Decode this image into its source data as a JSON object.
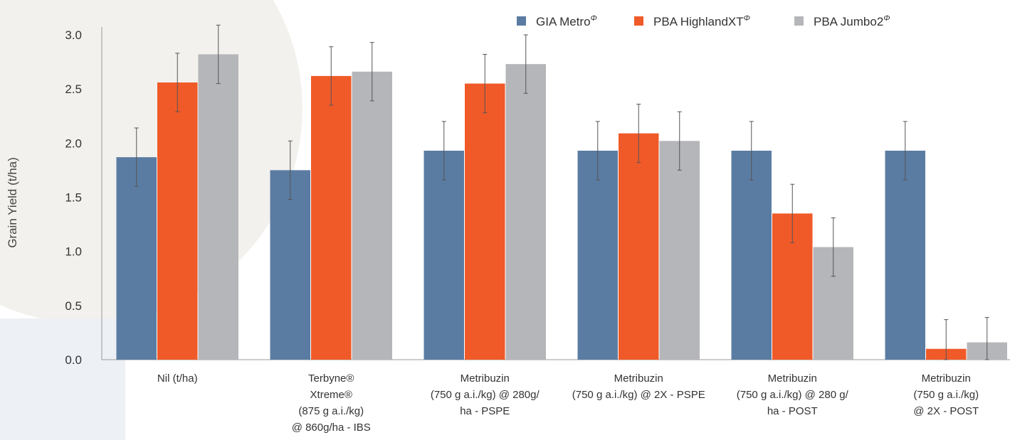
{
  "chart_data": {
    "type": "bar",
    "title": "",
    "ylabel": "Grain Yield (t/ha)",
    "xlabel": "",
    "ylim": [
      0,
      3.0
    ],
    "yticks": [
      "0.0",
      "0.5",
      "1.0",
      "1.5",
      "2.0",
      "2.5",
      "3.0"
    ],
    "grid": false,
    "legend_position": "top-right",
    "categories": [
      [
        "Nil (t/ha)"
      ],
      [
        "Terbyne®",
        "Xtreme®",
        "(875 g a.i./kg)",
        "@ 860g/ha - IBS"
      ],
      [
        "Metribuzin",
        "(750 g a.i./kg) @ 280g/",
        "ha - PSPE"
      ],
      [
        "Metribuzin",
        "(750 g a.i./kg) @ 2X - PSPE"
      ],
      [
        "Metribuzin",
        "(750 g a.i./kg) @ 280 g/",
        "ha - POST"
      ],
      [
        "Metribuzin",
        "(750 g a.i./kg)",
        "@ 2X - POST"
      ]
    ],
    "series": [
      {
        "name": "GIA Metro",
        "color": "#5b7ca2",
        "values": [
          1.87,
          1.75,
          1.93,
          1.93,
          1.93,
          1.93
        ],
        "errors": [
          0.27,
          0.27,
          0.27,
          0.27,
          0.27,
          0.27
        ]
      },
      {
        "name": "PBA HighlandXT",
        "color": "#f05a28",
        "values": [
          2.56,
          2.62,
          2.55,
          2.09,
          1.35,
          0.1
        ],
        "errors": [
          0.27,
          0.27,
          0.27,
          0.27,
          0.27,
          0.27
        ]
      },
      {
        "name": "PBA Jumbo2",
        "color": "#b5b6b9",
        "values": [
          2.82,
          2.66,
          2.73,
          2.02,
          1.04,
          0.16
        ],
        "errors": [
          0.27,
          0.27,
          0.27,
          0.27,
          0.27,
          0.23
        ]
      }
    ],
    "pbr_mark": "Φ"
  }
}
